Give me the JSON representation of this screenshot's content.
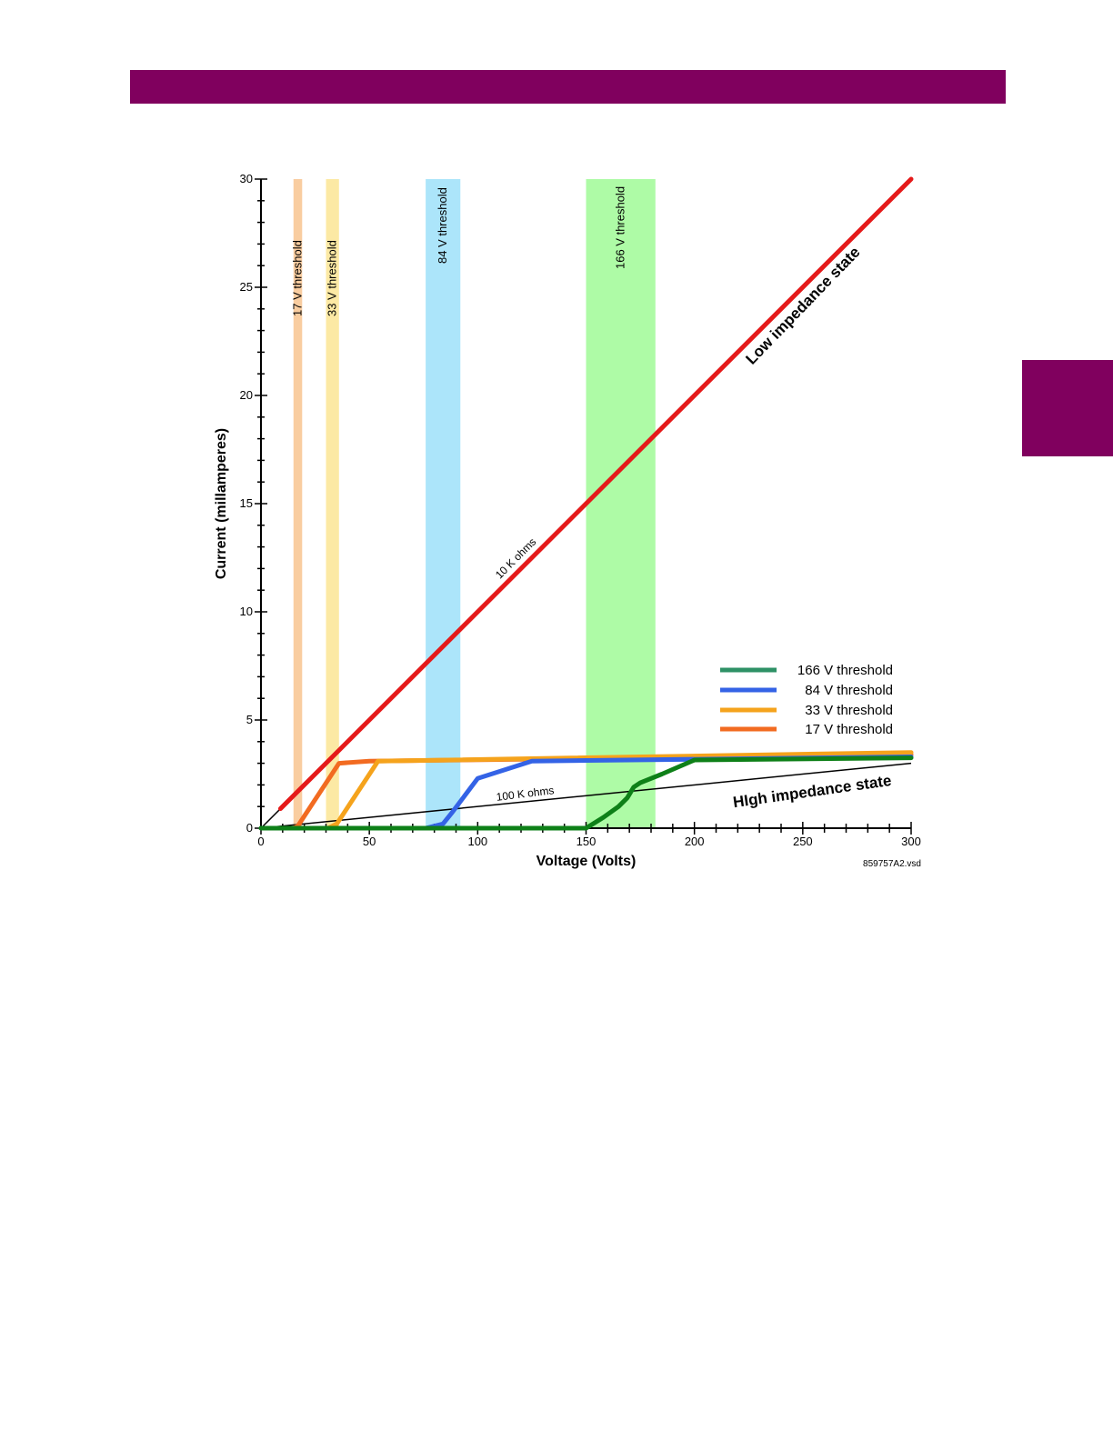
{
  "page": {
    "accent_color": "#80005e"
  },
  "chart_data": {
    "type": "line",
    "title": "",
    "xlabel": "Voltage (Volts)",
    "ylabel": "Current (millamperes)",
    "xlim": [
      0,
      300
    ],
    "ylim": [
      0,
      30
    ],
    "x_ticks": [
      0,
      50,
      100,
      150,
      200,
      250,
      300
    ],
    "y_ticks": [
      0,
      5,
      10,
      15,
      20,
      25,
      30
    ],
    "grid": false,
    "legend_position": "right",
    "threshold_bands": [
      {
        "label": "17 V threshold",
        "x_range": [
          15,
          19
        ],
        "color": "#f9cda0"
      },
      {
        "label": "33 V threshold",
        "x_range": [
          30,
          36
        ],
        "color": "#fce9a4"
      },
      {
        "label": "84 V threshold",
        "x_range": [
          76,
          92
        ],
        "color": "#ace5fa"
      },
      {
        "label": "166 V threshold",
        "x_range": [
          150,
          182
        ],
        "color": "#aefba6"
      }
    ],
    "reference_lines": [
      {
        "label": "10 K ohms",
        "x": [
          0,
          300
        ],
        "y": [
          0,
          30
        ],
        "color": "#000000"
      },
      {
        "label": "100 K ohms",
        "x": [
          0,
          300
        ],
        "y": [
          0,
          3
        ],
        "color": "#000000"
      }
    ],
    "low_impedance_line": {
      "x": [
        9,
        300
      ],
      "y": [
        0.9,
        30
      ],
      "color": "#e51a1a"
    },
    "series": [
      {
        "name": "166 V threshold",
        "legend_color": "#2e9166",
        "color": "#0e8018",
        "x": [
          0,
          150,
          158,
          165,
          169,
          172,
          175,
          185,
          200,
          300
        ],
        "y": [
          0,
          0,
          0.5,
          1.0,
          1.4,
          1.9,
          2.1,
          2.5,
          3.15,
          3.25
        ]
      },
      {
        "name": "84 V threshold",
        "legend_color": "#3463e6",
        "color": "#3463e6",
        "x": [
          0,
          76,
          84,
          88,
          100,
          125,
          300
        ],
        "y": [
          0,
          0,
          0.2,
          0.7,
          2.3,
          3.1,
          3.3
        ]
      },
      {
        "name": "33 V threshold",
        "legend_color": "#f5a31c",
        "color": "#f5a31c",
        "x": [
          0,
          31,
          35,
          54,
          300
        ],
        "y": [
          0,
          0,
          0.2,
          3.1,
          3.5
        ]
      },
      {
        "name": "17 V threshold",
        "legend_color": "#f26b21",
        "color": "#f26b21",
        "x": [
          0,
          15,
          17,
          36,
          50,
          300
        ],
        "y": [
          0,
          0,
          0.1,
          3.0,
          3.1,
          3.4
        ]
      }
    ],
    "annotations": [
      {
        "text": "Low impedance state"
      },
      {
        "text": "HIgh impedance state"
      },
      {
        "text": "10 K ohms"
      },
      {
        "text": "100 K ohms"
      },
      {
        "text": "859757A2.vsd"
      }
    ]
  }
}
